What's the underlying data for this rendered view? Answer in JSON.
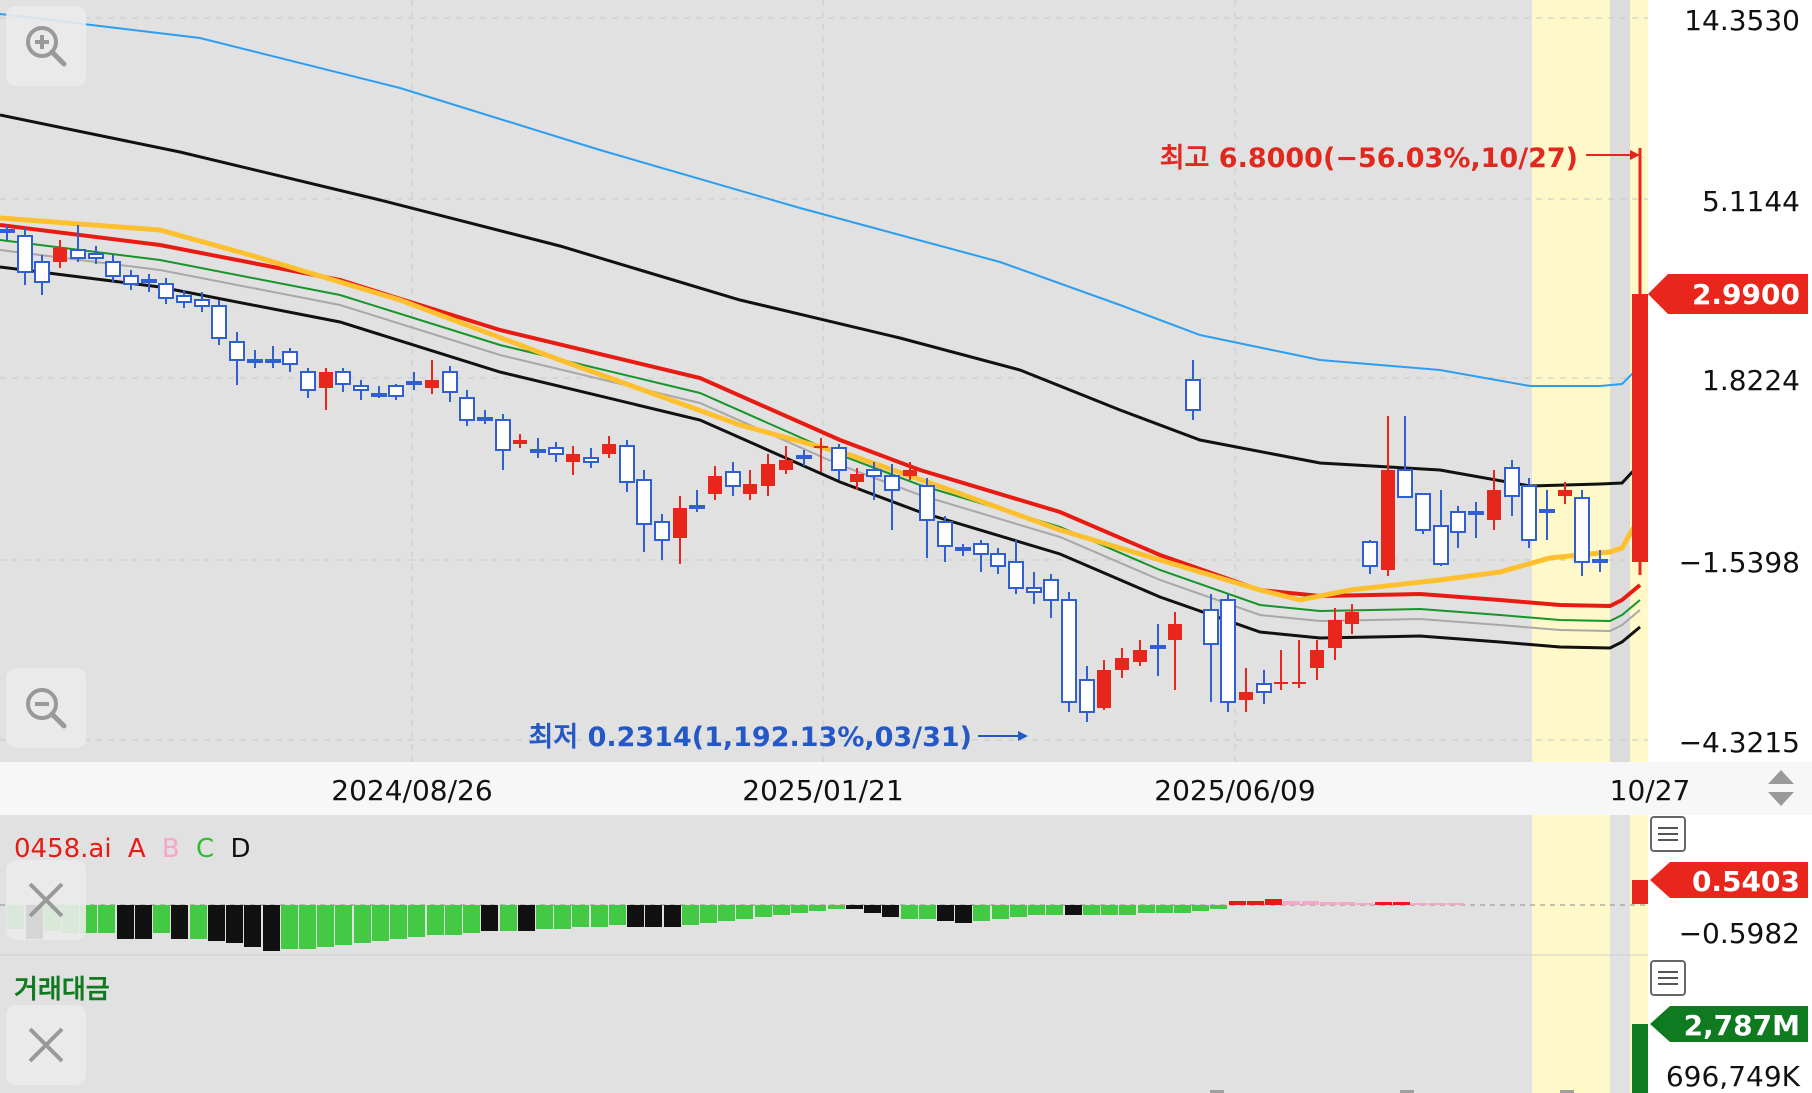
{
  "chart_data": {
    "type": "candlestick",
    "price_ticks": [
      "14.3530",
      "5.1144",
      "1.8224",
      "−1.5398",
      "−4.3215"
    ],
    "date_ticks": [
      "2024/08/26",
      "2025/01/21",
      "2025/06/09",
      "10/27"
    ],
    "current_price": "2.9900",
    "high_label": "최고 6.8000(−56.03%,10/27)",
    "low_label": "최저 0.2314(1,192.13%,03/31)",
    "colors": {
      "up": "#e8261c",
      "down": "#2f5fd0",
      "band_blue": "#2c9ef0",
      "band_black": "#111111",
      "ma_red": "#e81b12",
      "ma_orange": "#ffc030",
      "ma_green": "#16952a",
      "ma_gray": "#a8a8a8",
      "highlight": "#fff8c8",
      "plot_bg": "#e1e1e1"
    },
    "indicator": {
      "name": "0458.ai",
      "legend_a": "A",
      "legend_b": "B",
      "legend_c": "C",
      "legend_d": "D",
      "value": "0.5403",
      "tick": "−0.5982",
      "colors": {
        "a": "#e81b12",
        "b": "#f6a6c6",
        "c": "#33bb33",
        "d": "#111111"
      }
    },
    "volume": {
      "name": "거래대금",
      "value": "2,787M",
      "tick": "696,749K",
      "color": "#0f7a1f"
    }
  },
  "icons": {
    "zoom_in": "zoom-in-icon",
    "zoom_out": "zoom-out-icon",
    "close": "close-icon",
    "menu": "menu-icon",
    "scroll": "scroll-arrows-icon"
  }
}
